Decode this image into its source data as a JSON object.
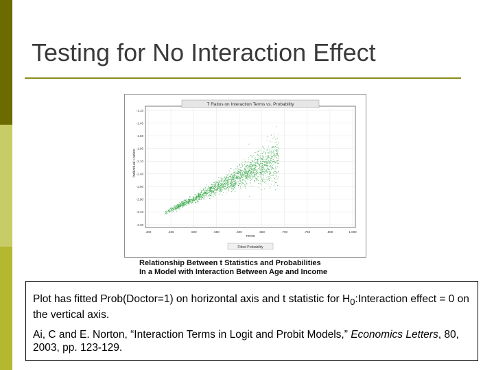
{
  "slide": {
    "title": "Testing for No Interaction Effect"
  },
  "colors": {
    "sidebar_dark": "#6b6b00",
    "sidebar_light": "#c7cc66",
    "sidebar_mid": "#b3b830",
    "rule": "#8a8a1a",
    "points": "#3aa84a"
  },
  "caption": {
    "line1": "Relationship Between t Statistics and Probabilities",
    "line2": "In a Model with Interaction Between Age and Income"
  },
  "textbox": {
    "p1_before_sub": "Plot has fitted Prob(Doctor=1) on horizontal axis and t statistic for H",
    "p1_sub": "0",
    "p1_after_sub": ":Interaction effect = 0 on the vertical axis.",
    "p2_before_italic": "Ai, C and E. Norton, “Interaction Terms in Logit and Probit Models,” ",
    "p2_italic": "Economics Letters",
    "p2_after_italic": ", 80, 2003, pp. 123-129."
  },
  "chart_data": {
    "type": "scatter",
    "title": "T Ratios on Interaction Terms vs. Probability",
    "ylabel": "Individual t-ratios",
    "xlabel_top": "PROB",
    "xlabel": "Fitted Probability",
    "xlim": [
      0.4,
      1.0
    ],
    "ylim": [
      -3.15,
      -1.05
    ],
    "x_ticks": [
      ".400",
      ".450",
      ".500",
      ".550",
      ".600",
      ".650",
      ".700",
      ".750",
      ".800",
      "1.000"
    ],
    "y_ticks": [
      "-1.10",
      "-1.40",
      "-1.60",
      "-1.90",
      "-2.10",
      "-2.40",
      "-2.60",
      "-2.90",
      "-3.10",
      "-3.30"
    ],
    "grid": true,
    "series": [
      {
        "trend": [
          [
            0.455,
            -2.9
          ],
          [
            0.5,
            -2.77
          ],
          [
            0.55,
            -2.62
          ],
          [
            0.6,
            -2.47
          ],
          [
            0.65,
            -2.33
          ],
          [
            0.7,
            -2.18
          ],
          [
            0.75,
            -2.04
          ],
          [
            0.78,
            -1.96
          ]
        ],
        "scatter_band": {
          "narrow_at_x": 0.455,
          "narrow_spread": 0.05,
          "wide_at_x": 0.78,
          "wide_spread": 0.45,
          "points_estimate": 1800
        }
      }
    ]
  }
}
